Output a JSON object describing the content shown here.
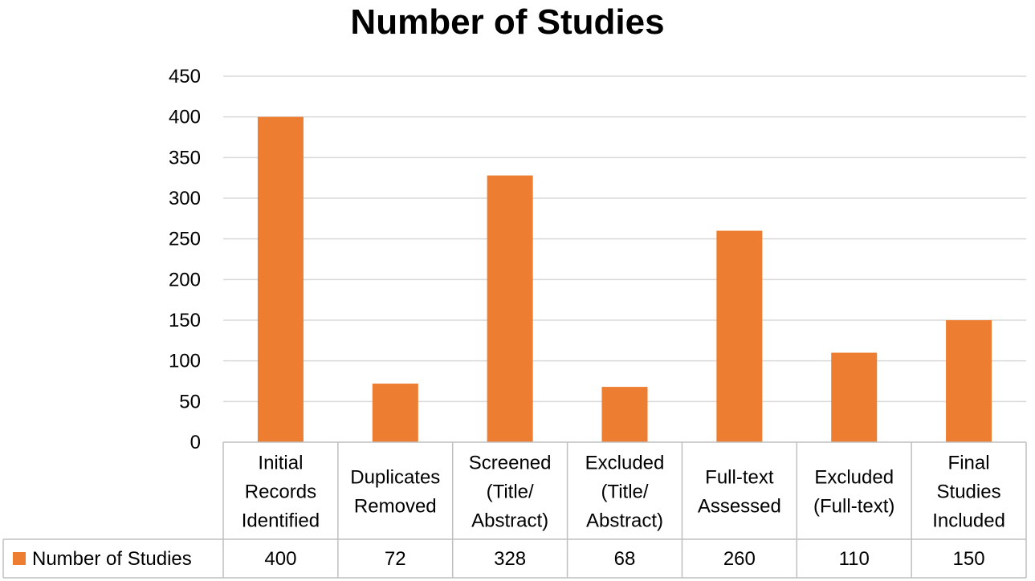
{
  "chart_data": {
    "type": "bar",
    "title": "Number of Studies",
    "categories": [
      [
        "Initial",
        "Records",
        "Identified"
      ],
      [
        "Duplicates",
        "Removed"
      ],
      [
        "Screened",
        "(Title/",
        "Abstract)"
      ],
      [
        "Excluded",
        "(Title/",
        "Abstract)"
      ],
      [
        "Full-text",
        "Assessed"
      ],
      [
        "Excluded",
        "(Full-text)"
      ],
      [
        "Final",
        "Studies",
        "Included"
      ]
    ],
    "series": [
      {
        "name": "Number of Studies",
        "values": [
          400,
          72,
          328,
          68,
          260,
          110,
          150
        ],
        "color": "#ED7D31"
      }
    ],
    "ylim": [
      0,
      450
    ],
    "yticks": [
      0,
      50,
      100,
      150,
      200,
      250,
      300,
      350,
      400,
      450
    ],
    "grid": true,
    "legend": "data-table-row"
  }
}
